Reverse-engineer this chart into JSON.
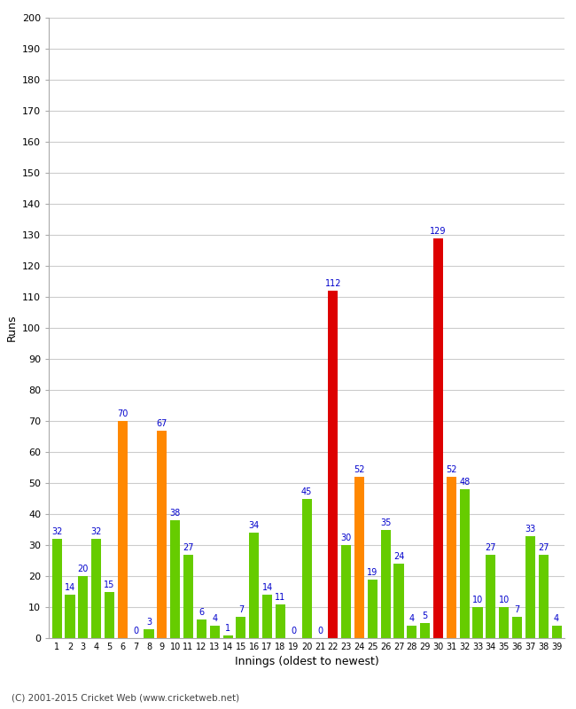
{
  "innings": [
    1,
    2,
    3,
    4,
    5,
    6,
    7,
    8,
    9,
    10,
    11,
    12,
    13,
    14,
    15,
    16,
    17,
    18,
    19,
    20,
    21,
    22,
    23,
    24,
    25,
    26,
    27,
    28,
    29,
    30,
    31,
    32,
    33,
    34,
    35,
    36,
    37,
    38,
    39
  ],
  "runs": [
    32,
    14,
    20,
    32,
    15,
    70,
    0,
    3,
    67,
    38,
    27,
    6,
    4,
    1,
    7,
    34,
    14,
    11,
    0,
    45,
    0,
    112,
    30,
    52,
    19,
    35,
    24,
    4,
    5,
    129,
    52,
    48,
    10,
    27,
    10,
    7,
    33,
    27,
    4
  ],
  "colors": [
    "#66cc00",
    "#66cc00",
    "#66cc00",
    "#66cc00",
    "#66cc00",
    "#ff8800",
    "#66cc00",
    "#66cc00",
    "#ff8800",
    "#66cc00",
    "#66cc00",
    "#66cc00",
    "#66cc00",
    "#66cc00",
    "#66cc00",
    "#66cc00",
    "#66cc00",
    "#66cc00",
    "#66cc00",
    "#66cc00",
    "#66cc00",
    "#dd0000",
    "#66cc00",
    "#ff8800",
    "#66cc00",
    "#66cc00",
    "#66cc00",
    "#66cc00",
    "#66cc00",
    "#dd0000",
    "#ff8800",
    "#66cc00",
    "#66cc00",
    "#66cc00",
    "#66cc00",
    "#66cc00",
    "#66cc00",
    "#66cc00",
    "#66cc00"
  ],
  "xlabel": "Innings (oldest to newest)",
  "ylabel": "Runs",
  "ylim": [
    0,
    200
  ],
  "yticks": [
    0,
    10,
    20,
    30,
    40,
    50,
    60,
    70,
    80,
    90,
    100,
    110,
    120,
    130,
    140,
    150,
    160,
    170,
    180,
    190,
    200
  ],
  "label_color": "#0000cc",
  "label_fontsize": 7,
  "axis_label_fontsize": 9,
  "footer": "(C) 2001-2015 Cricket Web (www.cricketweb.net)",
  "background_color": "#ffffff",
  "grid_color": "#cccccc"
}
